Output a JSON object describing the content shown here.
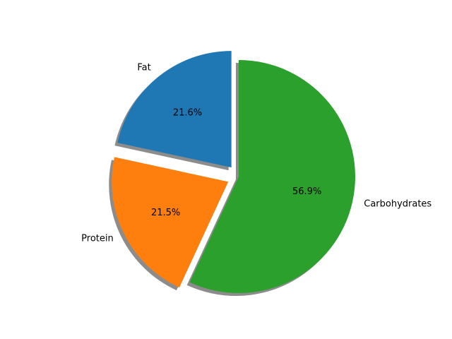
{
  "chart_data": {
    "type": "pie",
    "title": "",
    "slices": [
      {
        "label": "Fat",
        "value": 21.6,
        "pct_label": "21.6%",
        "color": "#1f77b4",
        "exploded": true
      },
      {
        "label": "Protein",
        "value": 21.5,
        "pct_label": "21.5%",
        "color": "#ff7f0e",
        "exploded": true
      },
      {
        "label": "Carbohydrates",
        "value": 56.9,
        "pct_label": "56.9%",
        "color": "#2ca02c",
        "exploded": false
      }
    ],
    "start_angle_deg": 90,
    "direction": "counterclockwise",
    "shadow": true,
    "shadow_color": "#8c8c8c",
    "legend": "none"
  }
}
